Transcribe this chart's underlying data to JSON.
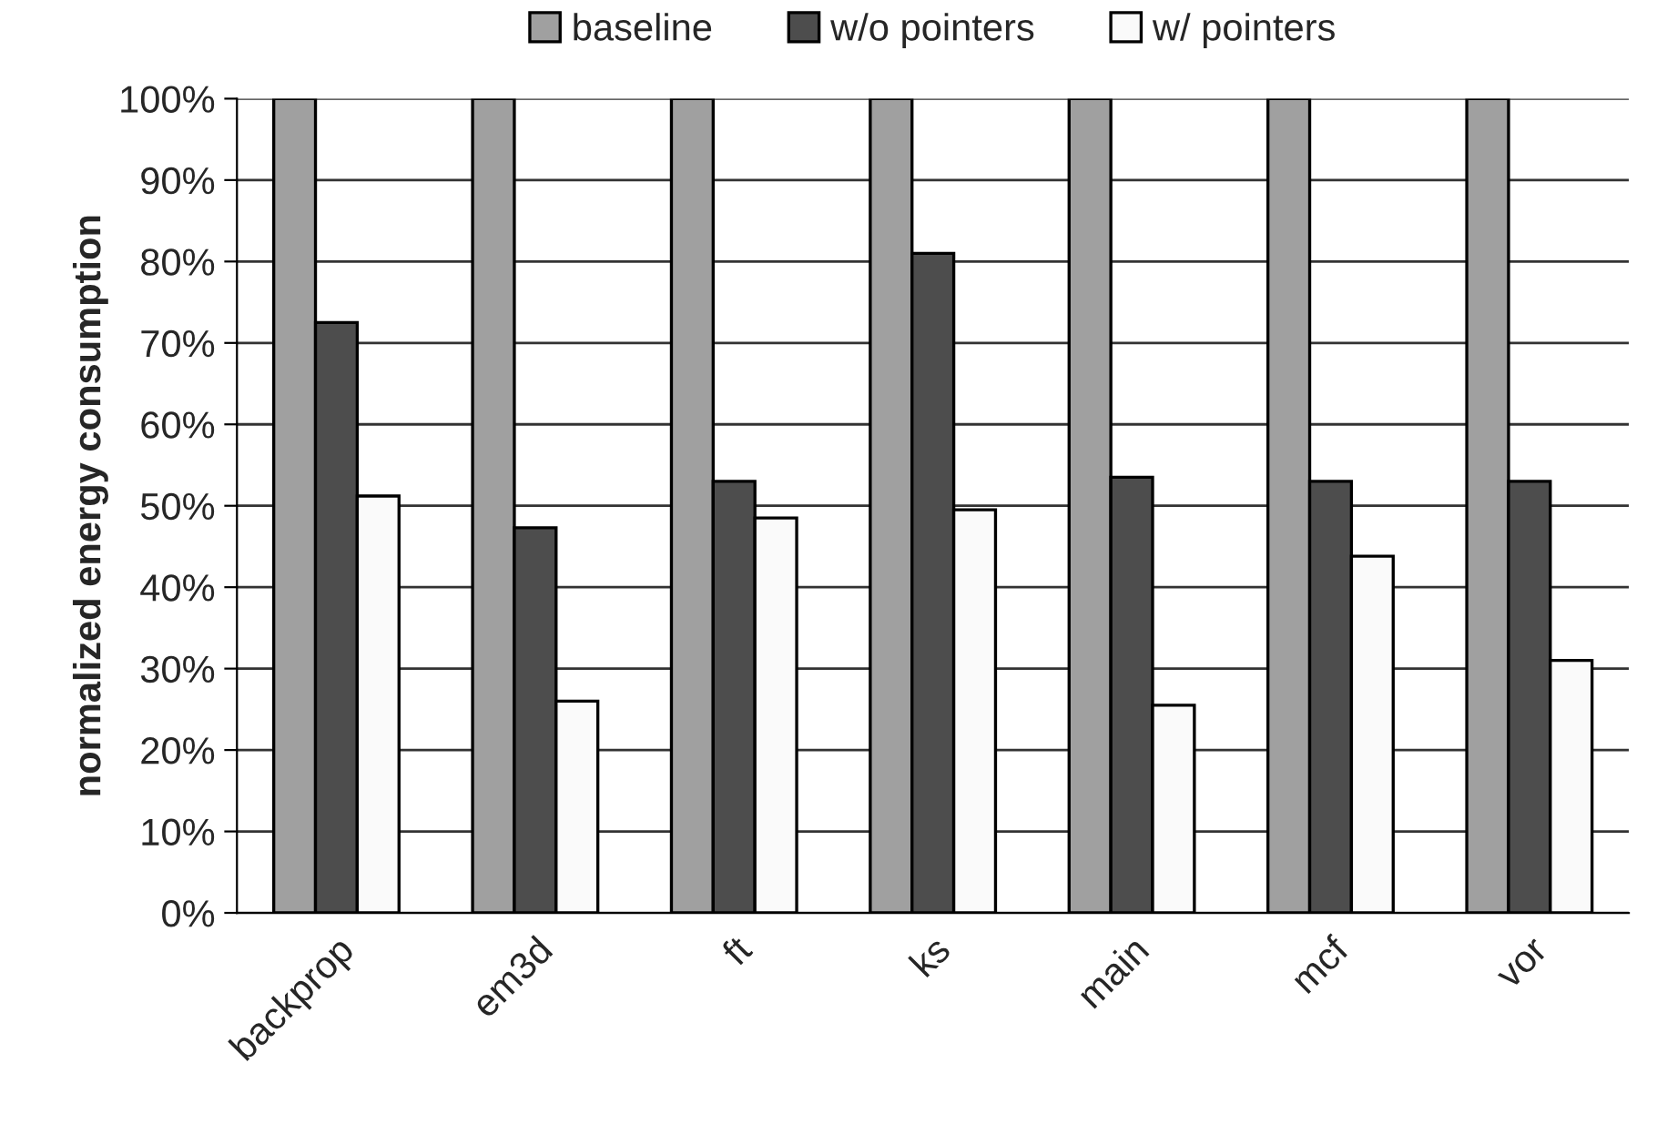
{
  "chart_data": {
    "type": "bar",
    "ylabel": "normalized energy consumption",
    "categories": [
      "backprop",
      "em3d",
      "ft",
      "ks",
      "main",
      "mcf",
      "vor"
    ],
    "series": [
      {
        "name": "baseline",
        "color": "#a0a0a0",
        "values": [
          100,
          100,
          100,
          100,
          100,
          100,
          100
        ]
      },
      {
        "name": "w/o pointers",
        "color": "#4d4d4d",
        "values": [
          72.5,
          47.3,
          53,
          81,
          53.5,
          53,
          53
        ]
      },
      {
        "name": "w/ pointers",
        "color": "#fafafa",
        "values": [
          51.2,
          26,
          48.5,
          49.5,
          25.5,
          43.8,
          31
        ]
      }
    ],
    "ylim": [
      0,
      100
    ],
    "yticks": [
      {
        "value": 0,
        "label": "0%"
      },
      {
        "value": 10,
        "label": "10%"
      },
      {
        "value": 20,
        "label": "20%"
      },
      {
        "value": 30,
        "label": "30%"
      },
      {
        "value": 40,
        "label": "40%"
      },
      {
        "value": 50,
        "label": "50%"
      },
      {
        "value": 60,
        "label": "60%"
      },
      {
        "value": 70,
        "label": "70%"
      },
      {
        "value": 80,
        "label": "80%"
      },
      {
        "value": 90,
        "label": "90%"
      },
      {
        "value": 100,
        "label": "100%"
      }
    ],
    "grid": "y",
    "legend": "top"
  }
}
